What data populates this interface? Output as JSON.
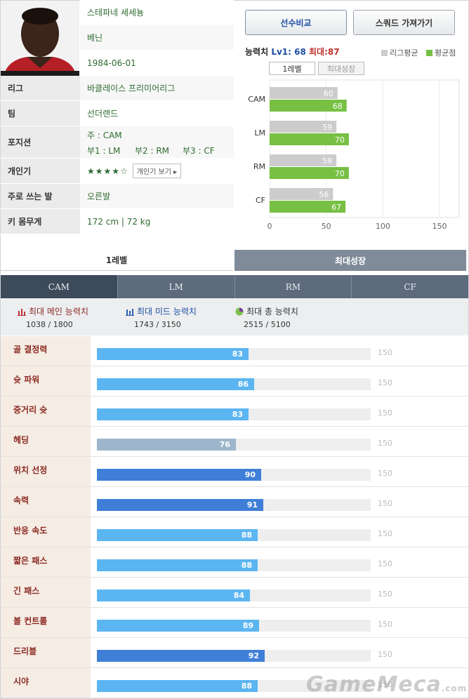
{
  "profile": {
    "name": "스테파네 세세뇽",
    "country": "베닌",
    "birth": "1984-06-01",
    "rows": [
      {
        "label": "리그",
        "value": "바클레이스 프리미어리그"
      },
      {
        "label": "팀",
        "value": "선더랜드"
      },
      {
        "label": "포지션",
        "value": ""
      },
      {
        "label": "개인기",
        "value": ""
      },
      {
        "label": "주로 쓰는 발",
        "value": "오른발"
      },
      {
        "label": "키 몸무게",
        "value": "172 cm | 72 kg"
      }
    ],
    "position_main": "주 : CAM",
    "position_sub1": "부1 : LM",
    "position_sub2": "부2 : RM",
    "position_sub3": "부3 : CF",
    "skill_stars": "★★★★☆",
    "skill_button": "개인기 보기 ▸"
  },
  "buttons": {
    "compare": "선수비교",
    "squad": "스쿼드 가져가기"
  },
  "ability": {
    "label": "능력치",
    "lv_text": "Lv1: 68",
    "max_text": "최대:87"
  },
  "legend": {
    "league_avg": "리그평균",
    "avg": "평균점",
    "league_color": "#cccccc",
    "avg_color": "#77c043"
  },
  "chart_tabs": {
    "level1": "1레벨",
    "max_growth": "최대성장"
  },
  "chart_data": {
    "type": "bar",
    "categories": [
      "CAM",
      "LM",
      "RM",
      "CF"
    ],
    "series": [
      {
        "name": "리그평균",
        "values": [
          60,
          59,
          59,
          56
        ]
      },
      {
        "name": "평균점",
        "values": [
          68,
          70,
          70,
          67
        ]
      }
    ],
    "xlim": [
      0,
      150
    ],
    "xticks": [
      "0",
      "50",
      "100",
      "150"
    ]
  },
  "level_tabs": {
    "level1": "1레벨",
    "max_growth": "최대성장"
  },
  "position_tabs": [
    "CAM",
    "LM",
    "RM",
    "CF"
  ],
  "summary": {
    "main": {
      "title": "최대 메인 능력치",
      "value": "1038 / 1800"
    },
    "mid": {
      "title": "최대 미드 능력치",
      "value": "1743 / 3150"
    },
    "total": {
      "title": "최대 총 능력치",
      "value": "2515 / 5100"
    }
  },
  "stats_max": 150,
  "stats": [
    {
      "label": "골 결정력",
      "value": 83,
      "color": "#5bb5f1"
    },
    {
      "label": "슛 파워",
      "value": 86,
      "color": "#5bb5f1"
    },
    {
      "label": "중거리 슛",
      "value": 83,
      "color": "#5bb5f1"
    },
    {
      "label": "헤딩",
      "value": 76,
      "color": "#9db6cc"
    },
    {
      "label": "위치 선정",
      "value": 90,
      "color": "#3f7fd8"
    },
    {
      "label": "속력",
      "value": 91,
      "color": "#3f7fd8"
    },
    {
      "label": "반응 속도",
      "value": 88,
      "color": "#5bb5f1"
    },
    {
      "label": "짧은 패스",
      "value": 88,
      "color": "#5bb5f1"
    },
    {
      "label": "긴 패스",
      "value": 84,
      "color": "#5bb5f1"
    },
    {
      "label": "볼 컨트롤",
      "value": 89,
      "color": "#5bb5f1"
    },
    {
      "label": "드리블",
      "value": 92,
      "color": "#3f7fd8"
    },
    {
      "label": "시야",
      "value": 88,
      "color": "#5bb5f1"
    }
  ],
  "watermark": {
    "text": "GameMeca",
    "suffix": ".com"
  }
}
